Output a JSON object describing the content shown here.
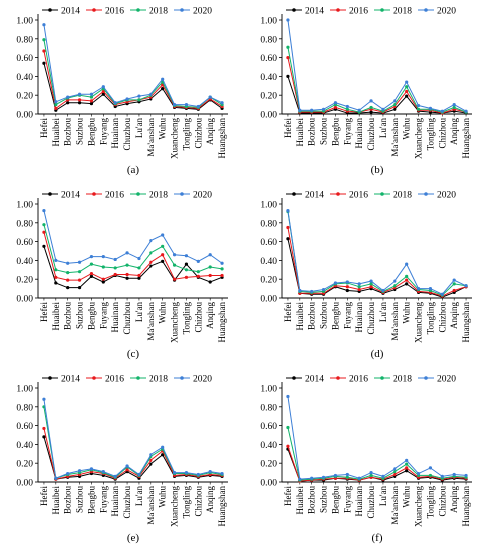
{
  "legend": [
    "2014",
    "2016",
    "2018",
    "2020"
  ],
  "colors": {
    "2014": "#000000",
    "2016": "#e8191c",
    "2018": "#12b36a",
    "2020": "#3d7fd6"
  },
  "chart_data": [
    {
      "type": "line",
      "panel_label": "(a)",
      "x": [
        "Hefei",
        "Huaibei",
        "Bozhou",
        "Suzhou",
        "Bengbu",
        "Fuyang",
        "Huainan",
        "Chuzhou",
        "Lu'an",
        "Ma'anshan",
        "Wuhu",
        "Xuancheng",
        "Tongling",
        "Chizhou",
        "Anqing",
        "Huangshan"
      ],
      "ylim": [
        0,
        1
      ],
      "yticks": [
        "0.00",
        "0.20",
        "0.40",
        "0.60",
        "0.80",
        "1.00"
      ],
      "legend_position": "top",
      "series": [
        {
          "name": "2014",
          "values": [
            0.54,
            0.04,
            0.12,
            0.12,
            0.11,
            0.21,
            0.08,
            0.11,
            0.13,
            0.16,
            0.27,
            0.07,
            0.06,
            0.05,
            0.15,
            0.06
          ]
        },
        {
          "name": "2016",
          "values": [
            0.67,
            0.06,
            0.15,
            0.15,
            0.14,
            0.24,
            0.1,
            0.13,
            0.15,
            0.18,
            0.31,
            0.08,
            0.07,
            0.06,
            0.16,
            0.08
          ]
        },
        {
          "name": "2018",
          "values": [
            0.79,
            0.1,
            0.17,
            0.2,
            0.18,
            0.27,
            0.11,
            0.15,
            0.15,
            0.2,
            0.34,
            0.09,
            0.08,
            0.07,
            0.18,
            0.1
          ]
        },
        {
          "name": "2020",
          "values": [
            0.95,
            0.13,
            0.18,
            0.21,
            0.21,
            0.29,
            0.12,
            0.16,
            0.19,
            0.21,
            0.37,
            0.1,
            0.1,
            0.08,
            0.18,
            0.12
          ]
        }
      ]
    },
    {
      "type": "line",
      "panel_label": "(b)",
      "x": [
        "Hefei",
        "Huaibei",
        "Bozhou",
        "Suzhou",
        "Bengbu",
        "Fuyang",
        "Huainan",
        "Chuzhou",
        "Lu'an",
        "Ma'anshan",
        "Wuhu",
        "Xuancheng",
        "Tongling",
        "Chizhou",
        "Anqing",
        "Huangshan"
      ],
      "ylim": [
        0,
        1
      ],
      "yticks": [
        "0.00",
        "0.20",
        "0.40",
        "0.60",
        "0.80",
        "1.00"
      ],
      "legend_position": "top",
      "series": [
        {
          "name": "2014",
          "values": [
            0.4,
            0.01,
            0.01,
            0.01,
            0.05,
            0.01,
            0.01,
            0.02,
            0.01,
            0.05,
            0.19,
            0.03,
            0.02,
            0.01,
            0.03,
            0.01
          ]
        },
        {
          "name": "2016",
          "values": [
            0.6,
            0.02,
            0.02,
            0.02,
            0.07,
            0.03,
            0.02,
            0.05,
            0.02,
            0.08,
            0.24,
            0.04,
            0.04,
            0.01,
            0.05,
            0.02
          ]
        },
        {
          "name": "2018",
          "values": [
            0.71,
            0.03,
            0.03,
            0.03,
            0.1,
            0.05,
            0.02,
            0.07,
            0.03,
            0.1,
            0.29,
            0.05,
            0.05,
            0.02,
            0.07,
            0.02
          ]
        },
        {
          "name": "2020",
          "values": [
            1.0,
            0.04,
            0.04,
            0.05,
            0.12,
            0.08,
            0.04,
            0.14,
            0.05,
            0.14,
            0.34,
            0.09,
            0.06,
            0.03,
            0.1,
            0.03
          ]
        }
      ]
    },
    {
      "type": "line",
      "panel_label": "(c)",
      "x": [
        "Hefei",
        "Huaibei",
        "Bozhou",
        "Suzhou",
        "Bengbu",
        "Fuyang",
        "Huainan",
        "Chuzhou",
        "Lu'an",
        "Ma'anshan",
        "Wuhu",
        "Xuancheng",
        "Tongling",
        "Chizhou",
        "Anqing",
        "Huangshan"
      ],
      "ylim": [
        0,
        1
      ],
      "yticks": [
        "0.00",
        "0.20",
        "0.40",
        "0.60",
        "0.80",
        "1.00"
      ],
      "legend_position": "top",
      "series": [
        {
          "name": "2014",
          "values": [
            0.55,
            0.16,
            0.11,
            0.11,
            0.23,
            0.17,
            0.24,
            0.21,
            0.21,
            0.34,
            0.39,
            0.19,
            0.36,
            0.22,
            0.17,
            0.22
          ]
        },
        {
          "name": "2016",
          "values": [
            0.7,
            0.22,
            0.19,
            0.19,
            0.26,
            0.2,
            0.25,
            0.25,
            0.24,
            0.38,
            0.46,
            0.2,
            0.22,
            0.23,
            0.24,
            0.24
          ]
        },
        {
          "name": "2018",
          "values": [
            0.78,
            0.3,
            0.27,
            0.28,
            0.36,
            0.33,
            0.32,
            0.35,
            0.32,
            0.48,
            0.55,
            0.35,
            0.3,
            0.28,
            0.33,
            0.31
          ]
        },
        {
          "name": "2020",
          "values": [
            0.93,
            0.4,
            0.37,
            0.38,
            0.44,
            0.44,
            0.41,
            0.48,
            0.42,
            0.61,
            0.67,
            0.46,
            0.45,
            0.39,
            0.46,
            0.37
          ]
        }
      ]
    },
    {
      "type": "line",
      "panel_label": "(d)",
      "x": [
        "Hefei",
        "Huaibei",
        "Bozhou",
        "Suzhou",
        "Bengbu",
        "Fuyang",
        "Huainan",
        "Chuzhou",
        "Lu'an",
        "Ma'anshan",
        "Wuhu",
        "Xuancheng",
        "Tongling",
        "Chizhou",
        "Anqing",
        "Huangshan"
      ],
      "ylim": [
        0,
        1
      ],
      "yticks": [
        "0.00",
        "0.20",
        "0.40",
        "0.60",
        "0.80",
        "1.00"
      ],
      "legend_position": "top",
      "series": [
        {
          "name": "2014",
          "values": [
            0.63,
            0.05,
            0.04,
            0.04,
            0.12,
            0.08,
            0.07,
            0.1,
            0.05,
            0.09,
            0.15,
            0.06,
            0.05,
            0.01,
            0.06,
            0.12
          ]
        },
        {
          "name": "2016",
          "values": [
            0.75,
            0.05,
            0.05,
            0.05,
            0.13,
            0.12,
            0.09,
            0.12,
            0.06,
            0.11,
            0.19,
            0.07,
            0.06,
            0.02,
            0.08,
            0.12
          ]
        },
        {
          "name": "2018",
          "values": [
            0.92,
            0.07,
            0.06,
            0.07,
            0.15,
            0.16,
            0.12,
            0.15,
            0.07,
            0.13,
            0.23,
            0.09,
            0.08,
            0.03,
            0.15,
            0.13
          ]
        },
        {
          "name": "2020",
          "values": [
            0.93,
            0.08,
            0.07,
            0.09,
            0.16,
            0.17,
            0.15,
            0.18,
            0.08,
            0.18,
            0.36,
            0.1,
            0.1,
            0.04,
            0.19,
            0.13
          ]
        }
      ]
    },
    {
      "type": "line",
      "panel_label": "(e)",
      "x": [
        "Hefei",
        "Huaibei",
        "Bozhou",
        "Suzhou",
        "Bengbu",
        "Fuyang",
        "Huainan",
        "Chuzhou",
        "Lu'an",
        "Ma'anshan",
        "Wuhu",
        "Xuancheng",
        "Tongling",
        "Chizhou",
        "Anqing",
        "Huangshan"
      ],
      "ylim": [
        0,
        1
      ],
      "yticks": [
        "0.00",
        "0.20",
        "0.40",
        "0.60",
        "0.80",
        "1.00"
      ],
      "legend_position": "top",
      "series": [
        {
          "name": "2014",
          "values": [
            0.48,
            0.03,
            0.05,
            0.06,
            0.09,
            0.07,
            0.03,
            0.11,
            0.04,
            0.19,
            0.29,
            0.06,
            0.07,
            0.05,
            0.07,
            0.06
          ]
        },
        {
          "name": "2016",
          "values": [
            0.57,
            0.03,
            0.06,
            0.08,
            0.11,
            0.09,
            0.04,
            0.13,
            0.06,
            0.23,
            0.33,
            0.07,
            0.08,
            0.06,
            0.08,
            0.07
          ]
        },
        {
          "name": "2018",
          "values": [
            0.8,
            0.04,
            0.08,
            0.1,
            0.13,
            0.1,
            0.05,
            0.16,
            0.07,
            0.27,
            0.35,
            0.09,
            0.09,
            0.07,
            0.1,
            0.08
          ]
        },
        {
          "name": "2020",
          "values": [
            0.88,
            0.04,
            0.09,
            0.12,
            0.14,
            0.11,
            0.06,
            0.17,
            0.08,
            0.29,
            0.37,
            0.1,
            0.1,
            0.08,
            0.11,
            0.09
          ]
        }
      ]
    },
    {
      "type": "line",
      "panel_label": "(f)",
      "x": [
        "Hefei",
        "Huaibei",
        "Bozhou",
        "Suzhou",
        "Bengbu",
        "Fuyang",
        "Huainan",
        "Chuzhou",
        "Lu'an",
        "Ma'anshan",
        "Wuhu",
        "Xuancheng",
        "Tongling",
        "Chizhou",
        "Anqing",
        "Huangshan"
      ],
      "ylim": [
        0,
        1
      ],
      "yticks": [
        "0.00",
        "0.20",
        "0.40",
        "0.60",
        "0.80",
        "1.00"
      ],
      "legend_position": "top",
      "series": [
        {
          "name": "2014",
          "values": [
            0.35,
            0.01,
            0.02,
            0.02,
            0.04,
            0.03,
            0.02,
            0.05,
            0.02,
            0.06,
            0.12,
            0.04,
            0.05,
            0.02,
            0.04,
            0.03
          ]
        },
        {
          "name": "2016",
          "values": [
            0.38,
            0.01,
            0.02,
            0.03,
            0.04,
            0.04,
            0.02,
            0.05,
            0.03,
            0.08,
            0.15,
            0.05,
            0.06,
            0.03,
            0.05,
            0.04
          ]
        },
        {
          "name": "2018",
          "values": [
            0.58,
            0.02,
            0.03,
            0.04,
            0.06,
            0.05,
            0.03,
            0.07,
            0.04,
            0.11,
            0.19,
            0.07,
            0.07,
            0.04,
            0.06,
            0.05
          ]
        },
        {
          "name": "2020",
          "values": [
            0.91,
            0.03,
            0.04,
            0.05,
            0.07,
            0.08,
            0.04,
            0.1,
            0.06,
            0.14,
            0.23,
            0.09,
            0.15,
            0.06,
            0.08,
            0.07
          ]
        }
      ]
    }
  ]
}
